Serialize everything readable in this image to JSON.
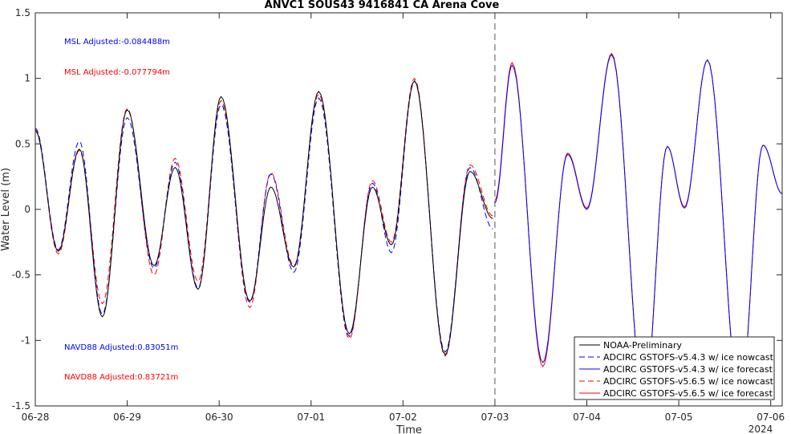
{
  "chart_data": {
    "type": "line",
    "title": "ANVC1 SOUS43 9416841 CA Arena Cove",
    "xlabel": "Time",
    "ylabel": "Water Level (m)",
    "year_label": "2024",
    "xlim": [
      "2024-06-28 00:00",
      "2024-07-06 03:00"
    ],
    "ylim": [
      -1.5,
      1.5
    ],
    "x_ticks": [
      "06-28",
      "06-29",
      "06-30",
      "07-01",
      "07-02",
      "07-03",
      "07-04",
      "07-05",
      "07-06"
    ],
    "y_ticks": [
      "-1.5",
      "-1",
      "-0.5",
      "0",
      "0.5",
      "1",
      "1.5"
    ],
    "y_tick_values": [
      -1.5,
      -1,
      -0.5,
      0,
      0.5,
      1,
      1.5
    ],
    "nowcast_forecast_divider": "2024-07-03 00:00",
    "annotations": [
      {
        "text": "MSL Adjusted:-0.084488m",
        "color": "#0000ff"
      },
      {
        "text": "MSL Adjusted:-0.077794m",
        "color": "#ff0000"
      },
      {
        "text": "NAVD88 Adjusted:0.83051m",
        "color": "#0000ff"
      },
      {
        "text": "NAVD88 Adjusted:0.83721m",
        "color": "#ff0000"
      }
    ],
    "legend_position": "bottom-right",
    "extremes_note": "approximate high/low water extrema read from the plot",
    "series": [
      {
        "name": "NOAA-Preliminary",
        "color": "#000000",
        "style": "solid",
        "points": [
          [
            "2024-06-28 00:00",
            0.6
          ],
          [
            "2024-06-28 06:00",
            -0.32
          ],
          [
            "2024-06-28 11:30",
            0.46
          ],
          [
            "2024-06-28 17:30",
            -0.82
          ],
          [
            "2024-06-29 00:00",
            0.76
          ],
          [
            "2024-06-29 07:00",
            -0.43
          ],
          [
            "2024-06-29 12:30",
            0.32
          ],
          [
            "2024-06-29 18:30",
            -0.61
          ],
          [
            "2024-06-30 00:30",
            0.86
          ],
          [
            "2024-06-30 08:00",
            -0.7
          ],
          [
            "2024-06-30 13:30",
            0.17
          ],
          [
            "2024-06-30 19:30",
            -0.44
          ],
          [
            "2024-07-01 02:00",
            0.9
          ],
          [
            "2024-07-01 10:00",
            -0.95
          ],
          [
            "2024-07-01 16:00",
            0.17
          ],
          [
            "2024-07-01 21:00",
            -0.27
          ],
          [
            "2024-07-02 03:00",
            0.98
          ],
          [
            "2024-07-02 11:00",
            -1.11
          ],
          [
            "2024-07-02 17:30",
            0.29
          ],
          [
            "2024-07-02 23:30",
            -0.07
          ]
        ]
      },
      {
        "name": "ADCIRC GSTOFS-v5.4.3 w/ ice nowcast",
        "color": "#0000ff",
        "style": "dashed",
        "points": [
          [
            "2024-06-28 00:00",
            0.62
          ],
          [
            "2024-06-28 06:00",
            -0.31
          ],
          [
            "2024-06-28 11:30",
            0.52
          ],
          [
            "2024-06-28 17:30",
            -0.8
          ],
          [
            "2024-06-29 00:00",
            0.7
          ],
          [
            "2024-06-29 07:00",
            -0.45
          ],
          [
            "2024-06-29 12:30",
            0.36
          ],
          [
            "2024-06-29 18:30",
            -0.6
          ],
          [
            "2024-06-30 00:30",
            0.8
          ],
          [
            "2024-06-30 08:00",
            -0.71
          ],
          [
            "2024-06-30 13:30",
            0.27
          ],
          [
            "2024-06-30 19:30",
            -0.48
          ],
          [
            "2024-07-01 02:00",
            0.85
          ],
          [
            "2024-07-01 10:00",
            -0.97
          ],
          [
            "2024-07-01 16:00",
            0.2
          ],
          [
            "2024-07-01 21:00",
            -0.33
          ],
          [
            "2024-07-02 03:00",
            0.98
          ],
          [
            "2024-07-02 11:00",
            -1.09
          ],
          [
            "2024-07-02 17:30",
            0.32
          ],
          [
            "2024-07-02 23:30",
            -0.15
          ]
        ]
      },
      {
        "name": "ADCIRC GSTOFS-v5.4.3 w/ ice forecast",
        "color": "#0000ff",
        "style": "solid",
        "points": [
          [
            "2024-07-03 00:00",
            0.05
          ],
          [
            "2024-07-03 04:30",
            1.1
          ],
          [
            "2024-07-03 12:30",
            -1.17
          ],
          [
            "2024-07-03 19:00",
            0.42
          ],
          [
            "2024-07-04 00:00",
            0.0
          ],
          [
            "2024-07-04 06:30",
            1.18
          ],
          [
            "2024-07-04 15:00",
            -1.45
          ],
          [
            "2024-07-04 21:00",
            0.48
          ],
          [
            "2024-07-05 01:30",
            0.01
          ],
          [
            "2024-07-05 07:30",
            1.14
          ],
          [
            "2024-07-05 16:00",
            -1.45
          ],
          [
            "2024-07-05 22:00",
            0.49
          ],
          [
            "2024-07-06 03:00",
            0.12
          ]
        ]
      },
      {
        "name": "ADCIRC GSTOFS-v5.6.5 w/ ice nowcast",
        "color": "#ff0000",
        "style": "dashed",
        "points": [
          [
            "2024-06-28 00:00",
            0.61
          ],
          [
            "2024-06-28 06:00",
            -0.34
          ],
          [
            "2024-06-28 11:30",
            0.45
          ],
          [
            "2024-06-28 17:30",
            -0.72
          ],
          [
            "2024-06-29 00:00",
            0.77
          ],
          [
            "2024-06-29 07:00",
            -0.5
          ],
          [
            "2024-06-29 12:30",
            0.39
          ],
          [
            "2024-06-29 18:30",
            -0.55
          ],
          [
            "2024-06-30 00:30",
            0.83
          ],
          [
            "2024-06-30 08:00",
            -0.75
          ],
          [
            "2024-06-30 13:30",
            0.28
          ],
          [
            "2024-06-30 19:30",
            -0.43
          ],
          [
            "2024-07-01 02:00",
            0.88
          ],
          [
            "2024-07-01 10:00",
            -0.99
          ],
          [
            "2024-07-01 16:00",
            0.22
          ],
          [
            "2024-07-01 21:00",
            -0.25
          ],
          [
            "2024-07-02 03:00",
            1.0
          ],
          [
            "2024-07-02 11:00",
            -1.12
          ],
          [
            "2024-07-02 17:30",
            0.34
          ],
          [
            "2024-07-02 23:30",
            -0.05
          ]
        ]
      },
      {
        "name": "ADCIRC GSTOFS-v5.6.5 w/ ice forecast",
        "color": "#ff0000",
        "style": "solid",
        "points": [
          [
            "2024-07-03 00:00",
            0.07
          ],
          [
            "2024-07-03 04:30",
            1.12
          ],
          [
            "2024-07-03 12:30",
            -1.2
          ],
          [
            "2024-07-03 19:00",
            0.43
          ],
          [
            "2024-07-04 00:00",
            0.01
          ],
          [
            "2024-07-04 06:30",
            1.19
          ],
          [
            "2024-07-04 15:00",
            -1.45
          ],
          [
            "2024-07-04 21:00",
            0.48
          ],
          [
            "2024-07-05 01:30",
            0.02
          ],
          [
            "2024-07-05 07:30",
            1.14
          ],
          [
            "2024-07-05 16:00",
            -1.45
          ],
          [
            "2024-07-05 22:00",
            0.49
          ],
          [
            "2024-07-06 03:00",
            0.12
          ]
        ]
      }
    ]
  }
}
